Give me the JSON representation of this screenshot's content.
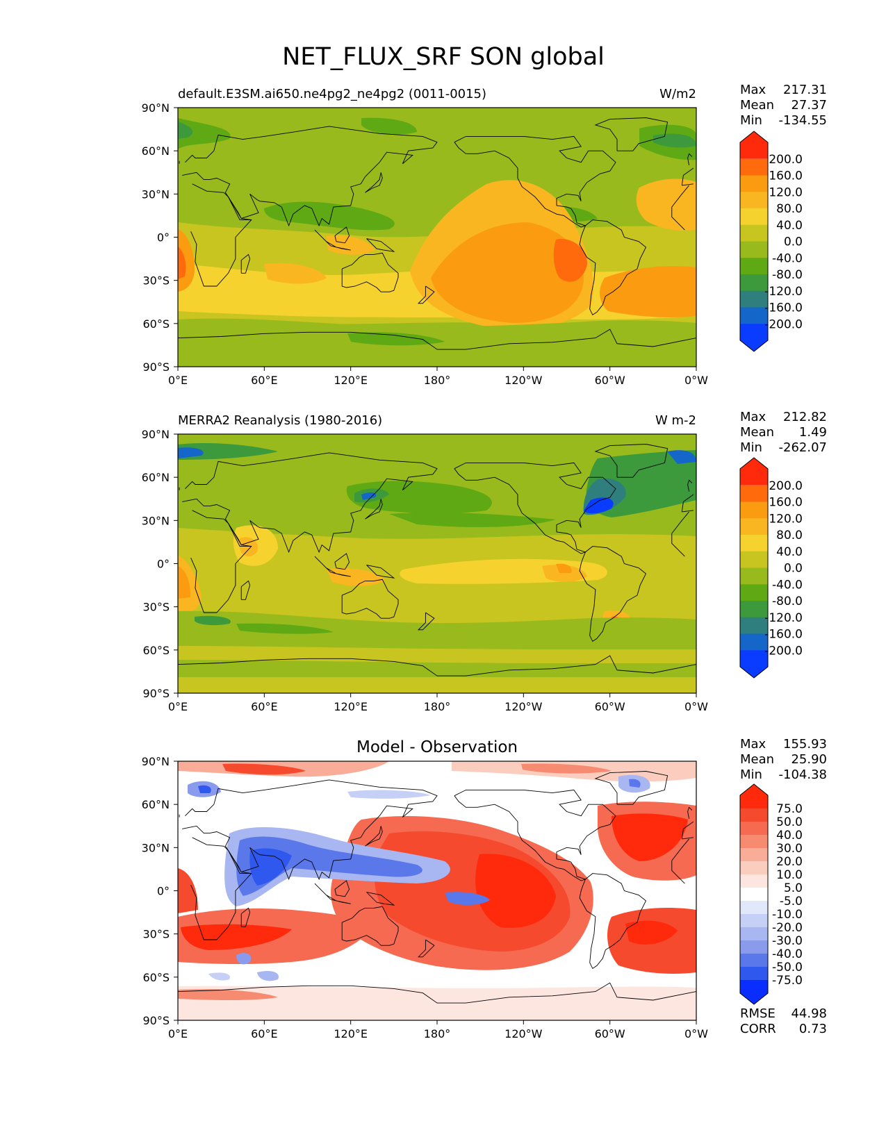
{
  "figure": {
    "title": "NET_FLUX_SRF SON global"
  },
  "panels": [
    {
      "left_title": "default.E3SM.ai650.ne4pg2_ne4pg2 (0011-0015)",
      "center_title": "",
      "units": "W/m2",
      "stats": {
        "max_label": "Max",
        "max": "217.31",
        "mean_label": "Mean",
        "mean": "27.37",
        "min_label": "Min",
        "min": "-134.55"
      },
      "colorbar": {
        "ticks": [
          "200.0",
          "160.0",
          "120.0",
          "80.0",
          "40.0",
          "0.0",
          "-40.0",
          "-80.0",
          "-120.0",
          "-160.0",
          "-200.0"
        ],
        "colors": [
          "#ff2a0c",
          "#ff6a0c",
          "#fb9c10",
          "#fab620",
          "#f6d22e",
          "#c8c420",
          "#99ba1c",
          "#5ea914",
          "#3c9a3c",
          "#2f7f7e",
          "#1466c8",
          "#0a3cff"
        ]
      },
      "extra": []
    },
    {
      "left_title": "MERRA2 Reanalysis (1980-2016)",
      "center_title": "",
      "units": "W m-2",
      "stats": {
        "max_label": "Max",
        "max": "212.82",
        "mean_label": "Mean",
        "mean": "1.49",
        "min_label": "Min",
        "min": "-262.07"
      },
      "colorbar": {
        "ticks": [
          "200.0",
          "160.0",
          "120.0",
          "80.0",
          "40.0",
          "0.0",
          "-40.0",
          "-80.0",
          "-120.0",
          "-160.0",
          "-200.0"
        ],
        "colors": [
          "#ff2a0c",
          "#ff6a0c",
          "#fb9c10",
          "#fab620",
          "#f6d22e",
          "#c8c420",
          "#99ba1c",
          "#5ea914",
          "#3c9a3c",
          "#2f7f7e",
          "#1466c8",
          "#0a3cff"
        ]
      },
      "extra": []
    },
    {
      "left_title": "",
      "center_title": "Model - Observation",
      "units": "",
      "stats": {
        "max_label": "Max",
        "max": "155.93",
        "mean_label": "Mean",
        "mean": "25.90",
        "min_label": "Min",
        "min": "-104.38"
      },
      "colorbar": {
        "ticks": [
          "75.0",
          "50.0",
          "40.0",
          "30.0",
          "20.0",
          "10.0",
          "5.0",
          "-5.0",
          "-10.0",
          "-20.0",
          "-30.0",
          "-40.0",
          "-50.0",
          "-75.0"
        ],
        "colors": [
          "#ff2a0c",
          "#f54a2e",
          "#f56a50",
          "#f78b72",
          "#f9ad98",
          "#fbcdbf",
          "#fde6e0",
          "#ffffff",
          "#e2e8fb",
          "#c6d0f7",
          "#a8b6f2",
          "#8a9bee",
          "#5a78ea",
          "#2f58ee",
          "#0a2eff"
        ]
      },
      "extra": [
        {
          "label": "RMSE",
          "value": "44.98"
        },
        {
          "label": "CORR",
          "value": "0.73"
        }
      ]
    }
  ],
  "axes": {
    "x_ticks": [
      "0°E",
      "60°E",
      "120°E",
      "180°",
      "120°W",
      "60°W",
      "0°W"
    ],
    "y_ticks": [
      "90°N",
      "60°N",
      "30°N",
      "0°",
      "30°S",
      "60°S",
      "90°S"
    ]
  },
  "chart_data": [
    {
      "type": "heatmap",
      "title": "default.E3SM.ai650.ne4pg2_ne4pg2 (0011-0015)",
      "variable": "NET_FLUX_SRF",
      "units": "W/m2",
      "xlim": [
        0,
        360
      ],
      "ylim": [
        -90,
        90
      ],
      "stats": {
        "max": 217.31,
        "mean": 27.37,
        "min": -134.55
      },
      "levels": [
        -200,
        -160,
        -120,
        -80,
        -40,
        0,
        40,
        80,
        120,
        160,
        200
      ]
    },
    {
      "type": "heatmap",
      "title": "MERRA2 Reanalysis (1980-2016)",
      "variable": "NET_FLUX_SRF",
      "units": "W m-2",
      "xlim": [
        0,
        360
      ],
      "ylim": [
        -90,
        90
      ],
      "stats": {
        "max": 212.82,
        "mean": 1.49,
        "min": -262.07
      },
      "levels": [
        -200,
        -160,
        -120,
        -80,
        -40,
        0,
        40,
        80,
        120,
        160,
        200
      ]
    },
    {
      "type": "heatmap",
      "title": "Model - Observation",
      "xlim": [
        0,
        360
      ],
      "ylim": [
        -90,
        90
      ],
      "stats": {
        "max": 155.93,
        "mean": 25.9,
        "min": -104.38,
        "rmse": 44.98,
        "corr": 0.73
      },
      "levels": [
        -75,
        -50,
        -40,
        -30,
        -20,
        -10,
        -5,
        5,
        10,
        20,
        30,
        40,
        50,
        75
      ]
    }
  ]
}
